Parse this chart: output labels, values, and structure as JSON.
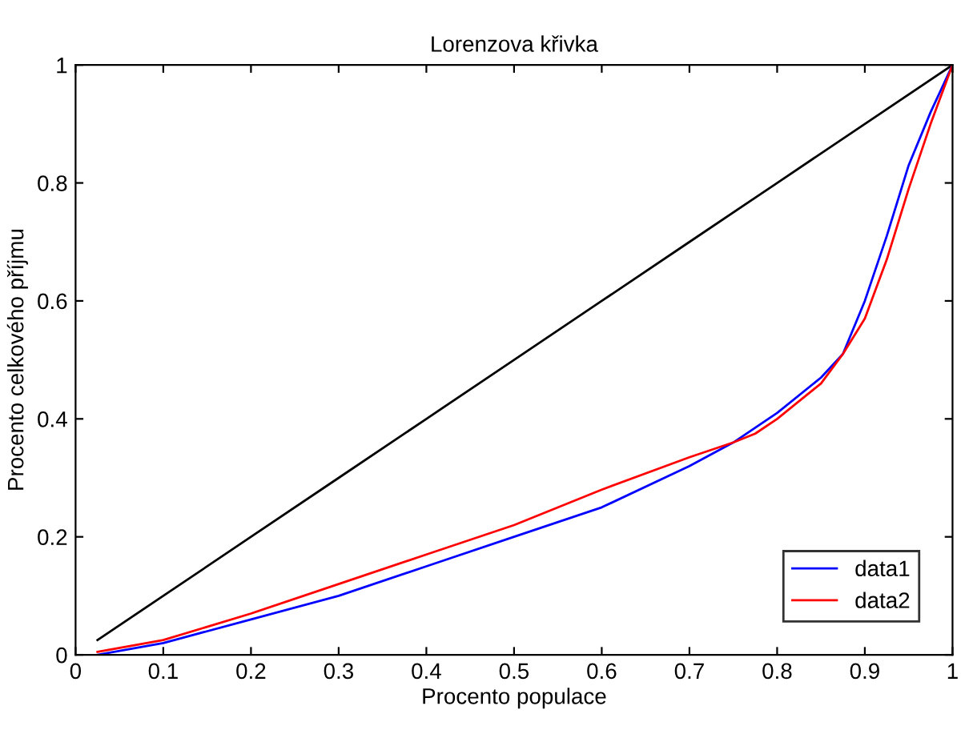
{
  "chart_data": {
    "type": "line",
    "title": "Lorenzova křivka",
    "xlabel": "Procento populace",
    "ylabel": "Procento celkového příjmu",
    "xlim": [
      0,
      1
    ],
    "ylim": [
      0,
      1
    ],
    "xticks": [
      0,
      0.1,
      0.2,
      0.3,
      0.4,
      0.5,
      0.6,
      0.7,
      0.8,
      0.9,
      1
    ],
    "yticks": [
      0,
      0.2,
      0.4,
      0.6,
      0.8,
      1
    ],
    "grid": false,
    "legend": "bottom right",
    "marker": "none",
    "line_style": "solid",
    "series": [
      {
        "color": "#000000",
        "x": [
          0.025,
          0.1,
          0.2,
          0.3,
          0.4,
          0.5,
          0.6,
          0.7,
          0.8,
          0.9,
          1
        ],
        "values": [
          0.025,
          0.1,
          0.2,
          0.3,
          0.4,
          0.5,
          0.6,
          0.7,
          0.8,
          0.9,
          1
        ]
      },
      {
        "name": "data1",
        "color": "#0000ff",
        "x": [
          0.025,
          0.1,
          0.2,
          0.3,
          0.4,
          0.5,
          0.6,
          0.7,
          0.75,
          0.775,
          0.8,
          0.85,
          0.875,
          0.9,
          0.925,
          0.95,
          0.975,
          1
        ],
        "values": [
          0.0,
          0.02,
          0.06,
          0.1,
          0.15,
          0.2,
          0.25,
          0.32,
          0.36,
          0.385,
          0.41,
          0.47,
          0.51,
          0.6,
          0.71,
          0.83,
          0.92,
          1
        ]
      },
      {
        "name": "data2",
        "color": "#ff0000",
        "x": [
          0.025,
          0.1,
          0.2,
          0.3,
          0.4,
          0.5,
          0.6,
          0.7,
          0.75,
          0.775,
          0.8,
          0.85,
          0.875,
          0.9,
          0.925,
          0.95,
          0.975,
          1
        ],
        "values": [
          0.005,
          0.025,
          0.07,
          0.12,
          0.17,
          0.22,
          0.28,
          0.335,
          0.36,
          0.375,
          0.4,
          0.46,
          0.51,
          0.57,
          0.67,
          0.79,
          0.9,
          1
        ]
      }
    ]
  }
}
